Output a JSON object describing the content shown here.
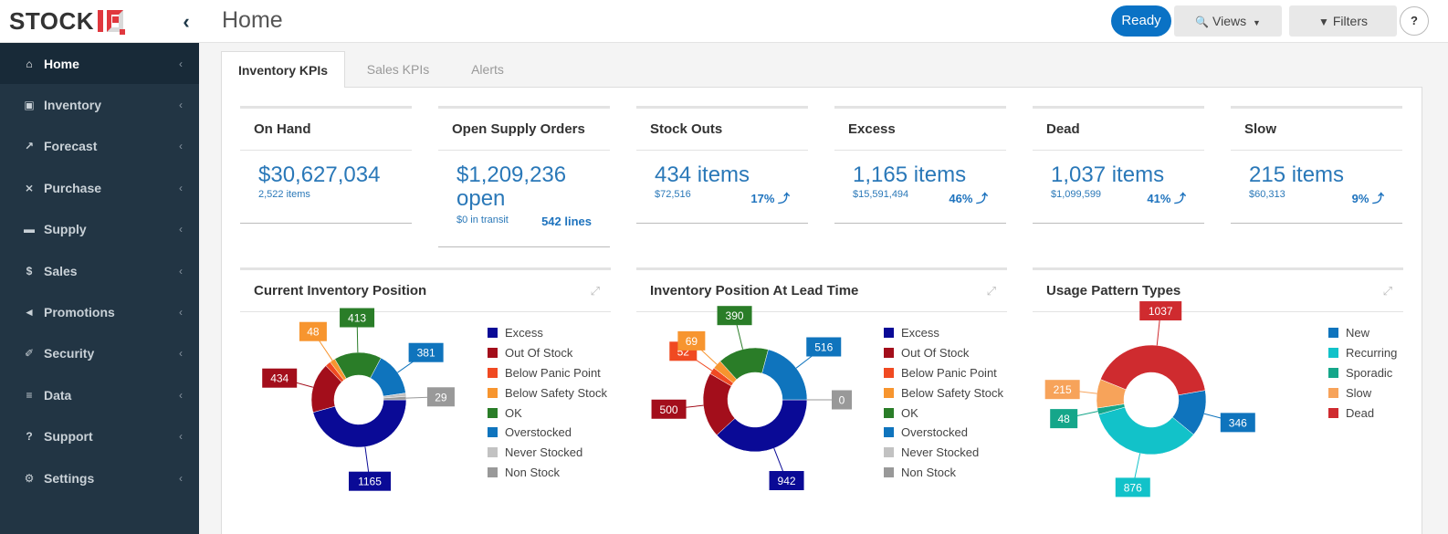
{
  "app": {
    "logo_text": "STOCK IQ",
    "page_title": "Home",
    "ready_label": "Ready",
    "views_label": "Views",
    "filters_label": "Filters",
    "help_label": "?"
  },
  "sidebar": {
    "items": [
      {
        "label": "Home",
        "icon": "home-icon"
      },
      {
        "label": "Inventory",
        "icon": "cubes-icon"
      },
      {
        "label": "Forecast",
        "icon": "line-chart-icon"
      },
      {
        "label": "Purchase",
        "icon": "cart-icon"
      },
      {
        "label": "Supply",
        "icon": "truck-icon"
      },
      {
        "label": "Sales",
        "icon": "dollar-icon"
      },
      {
        "label": "Promotions",
        "icon": "bullhorn-icon"
      },
      {
        "label": "Security",
        "icon": "key-icon"
      },
      {
        "label": "Data",
        "icon": "database-icon"
      },
      {
        "label": "Support",
        "icon": "question-icon"
      },
      {
        "label": "Settings",
        "icon": "gear-icon"
      }
    ]
  },
  "tabs": [
    {
      "label": "Inventory KPIs"
    },
    {
      "label": "Sales KPIs"
    },
    {
      "label": "Alerts"
    }
  ],
  "kpis": [
    {
      "title": "On Hand",
      "value": "$30,627,034",
      "sub": "2,522 items",
      "pct": ""
    },
    {
      "title": "Open Supply Orders",
      "value": "$1,209,236 open",
      "sub": "$0 in transit",
      "pct": "542 lines"
    },
    {
      "title": "Stock Outs",
      "value": "434 items",
      "sub": "$72,516",
      "pct": "17% ⤴"
    },
    {
      "title": "Excess",
      "value": "1,165 items",
      "sub": "$15,591,494",
      "pct": "46% ⤴"
    },
    {
      "title": "Dead",
      "value": "1,037 items",
      "sub": "$1,099,599",
      "pct": "41% ⤴"
    },
    {
      "title": "Slow",
      "value": "215 items",
      "sub": "$60,313",
      "pct": "9% ⤴"
    }
  ],
  "colors": {
    "accent": "#0a72c5",
    "sidebar": "#223544",
    "kpi_value": "#2a78b8"
  },
  "chart_data": [
    {
      "type": "pie",
      "title": "Current Inventory Position",
      "series": [
        {
          "name": "Excess",
          "value": 1165,
          "color": "#0a0a96"
        },
        {
          "name": "Out Of Stock",
          "value": 434,
          "color": "#a30e1b"
        },
        {
          "name": "Below Panic Point",
          "value": 48,
          "color": "#f04a22"
        },
        {
          "name": "Below Safety Stock",
          "value": 48,
          "color": "#f7952f"
        },
        {
          "name": "OK",
          "value": 413,
          "color": "#2a7d28"
        },
        {
          "name": "Overstocked",
          "value": 381,
          "color": "#0f74bd"
        },
        {
          "name": "Never Stocked",
          "value": 29,
          "color": "#c2c2c2"
        },
        {
          "name": "Non Stock",
          "value": 29,
          "color": "#999999"
        }
      ],
      "labels": [
        {
          "text": "1165",
          "color": "#0a0a96"
        },
        {
          "text": "434",
          "color": "#a30e1b"
        },
        {
          "text": "",
          "color": "#f04a22"
        },
        {
          "text": "48",
          "color": "#f7952f"
        },
        {
          "text": "413",
          "color": "#2a7d28"
        },
        {
          "text": "381",
          "color": "#0f74bd"
        },
        {
          "text": "",
          "color": "#c2c2c2"
        },
        {
          "text": "29",
          "color": "#999999"
        }
      ]
    },
    {
      "type": "pie",
      "title": "Inventory Position At Lead Time",
      "series": [
        {
          "name": "Excess",
          "value": 942,
          "color": "#0a0a96"
        },
        {
          "name": "Out Of Stock",
          "value": 500,
          "color": "#a30e1b"
        },
        {
          "name": "Below Panic Point",
          "value": 52,
          "color": "#f04a22"
        },
        {
          "name": "Below Safety Stock",
          "value": 69,
          "color": "#f7952f"
        },
        {
          "name": "OK",
          "value": 390,
          "color": "#2a7d28"
        },
        {
          "name": "Overstocked",
          "value": 516,
          "color": "#0f74bd"
        },
        {
          "name": "Never Stocked",
          "value": 0,
          "color": "#c2c2c2"
        },
        {
          "name": "Non Stock",
          "value": 0,
          "color": "#999999"
        }
      ],
      "labels": [
        {
          "text": "942",
          "color": "#0a0a96"
        },
        {
          "text": "500",
          "color": "#a30e1b"
        },
        {
          "text": "52",
          "color": "#f04a22"
        },
        {
          "text": "69",
          "color": "#f7952f"
        },
        {
          "text": "390",
          "color": "#2a7d28"
        },
        {
          "text": "516",
          "color": "#0f74bd"
        },
        {
          "text": "",
          "color": "#c2c2c2"
        },
        {
          "text": "0",
          "color": "#999999"
        }
      ]
    },
    {
      "type": "pie",
      "title": "Usage Pattern Types",
      "series": [
        {
          "name": "New",
          "value": 346,
          "color": "#0f74bd"
        },
        {
          "name": "Recurring",
          "value": 876,
          "color": "#12c2c9"
        },
        {
          "name": "Sporadic",
          "value": 48,
          "color": "#15a68a"
        },
        {
          "name": "Slow",
          "value": 215,
          "color": "#f7a35a"
        },
        {
          "name": "Dead",
          "value": 1037,
          "color": "#cf2b2f"
        }
      ],
      "labels": [
        {
          "text": "346",
          "color": "#0f74bd"
        },
        {
          "text": "876",
          "color": "#12c2c9"
        },
        {
          "text": "48",
          "color": "#15a68a"
        },
        {
          "text": "215",
          "color": "#f7a35a"
        },
        {
          "text": "1037",
          "color": "#cf2b2f"
        }
      ]
    }
  ]
}
